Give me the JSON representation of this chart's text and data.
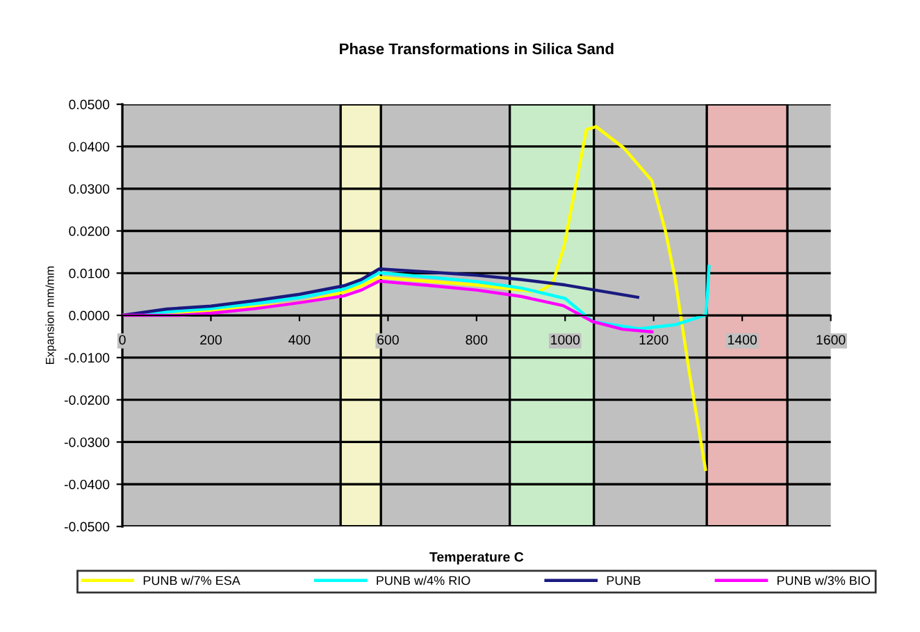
{
  "chart_data": {
    "type": "line",
    "title": "Phase Transformations in Silica Sand",
    "xlabel": "Temperature C",
    "ylabel": "Expansion mm/mm",
    "xlim": [
      0,
      1600
    ],
    "xticks": [
      0,
      200,
      400,
      600,
      800,
      1000,
      1200,
      1400,
      1600
    ],
    "ylim": [
      -0.05,
      0.05
    ],
    "yticks": [
      {
        "value": -0.05,
        "label": "-0.0500"
      },
      {
        "value": -0.04,
        "label": "-0.0400"
      },
      {
        "value": -0.03,
        "label": "-0.0300"
      },
      {
        "value": -0.02,
        "label": "-0.0200"
      },
      {
        "value": -0.01,
        "label": "-0.0100"
      },
      {
        "value": 0,
        "label": "0.0000"
      },
      {
        "value": 0.01,
        "label": "0.0100"
      },
      {
        "value": 0.02,
        "label": "0.0200"
      },
      {
        "value": 0.03,
        "label": "0.0300"
      },
      {
        "value": 0.04,
        "label": "0.0400"
      },
      {
        "value": 0.05,
        "label": "0.0500"
      }
    ],
    "grid": "y",
    "legend": "bottom",
    "marker": "none",
    "line_style": "solid",
    "bands": [
      {
        "axis": "x",
        "from": 493,
        "to": 584,
        "color": "#f4f4c8"
      },
      {
        "axis": "x",
        "from": 875,
        "to": 1065,
        "color": "#c8ecc8"
      },
      {
        "axis": "x",
        "from": 1320,
        "to": 1502,
        "color": "#e8b4b4"
      }
    ],
    "series": [
      {
        "name": "PUNB w/7% ESA",
        "color": "#ffff00",
        "x": [
          0,
          100,
          200,
          300,
          400,
          500,
          540,
          580,
          700,
          800,
          900,
          941,
          972,
          998,
          1028,
          1048,
          1070,
          1133,
          1196,
          1227,
          1248,
          1280,
          1317
        ],
        "values": [
          0,
          0.0005,
          0.0012,
          0.002,
          0.003,
          0.0055,
          0.007,
          0.009,
          0.008,
          0.0072,
          0.006,
          0.0056,
          0.0076,
          0.0165,
          0.033,
          0.044,
          0.0447,
          0.0396,
          0.0319,
          0.0198,
          0.0089,
          -0.0131,
          -0.0365
        ]
      },
      {
        "name": "PUNB w/4% RIO",
        "color": "#00ffff",
        "x": [
          0,
          100,
          200,
          300,
          400,
          500,
          540,
          580,
          700,
          800,
          900,
          1000,
          1063,
          1167,
          1250,
          1318,
          1322,
          1325
        ],
        "values": [
          0,
          0.0008,
          0.0016,
          0.0028,
          0.0042,
          0.0062,
          0.0078,
          0.0101,
          0.009,
          0.008,
          0.0065,
          0.004,
          -0.0015,
          -0.0032,
          -0.0022,
          0.0001,
          0.006,
          0.0116
        ]
      },
      {
        "name": "PUNB",
        "color": "#1a1a80",
        "x": [
          0,
          100,
          200,
          300,
          400,
          500,
          540,
          580,
          700,
          800,
          900,
          1000,
          1164
        ],
        "values": [
          0,
          0.0015,
          0.0022,
          0.0035,
          0.005,
          0.007,
          0.0085,
          0.011,
          0.0102,
          0.0095,
          0.0085,
          0.0072,
          0.0043
        ]
      },
      {
        "name": "PUNB w/3% BIO",
        "color": "#ff00ff",
        "x": [
          0,
          130,
          200,
          300,
          400,
          500,
          540,
          580,
          700,
          800,
          900,
          996,
          1063,
          1130,
          1196
        ],
        "values": [
          0,
          0,
          0.0005,
          0.0016,
          0.003,
          0.0046,
          0.006,
          0.0081,
          0.007,
          0.006,
          0.0045,
          0.0023,
          -0.0015,
          -0.0033,
          -0.0039
        ]
      }
    ]
  }
}
